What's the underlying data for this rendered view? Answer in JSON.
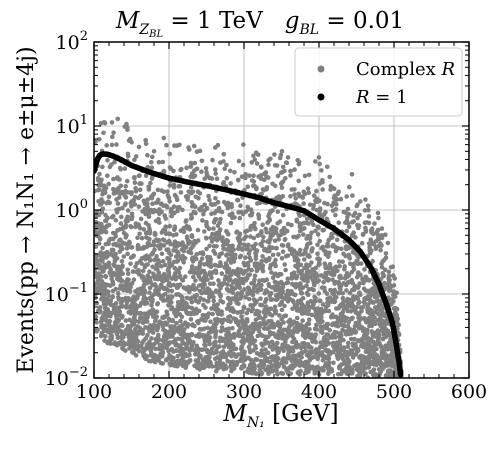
{
  "chart_data": {
    "type": "scatter",
    "title_parts": {
      "mz_sym": "M",
      "mz_sub": "Z",
      "mz_subsub": "BL",
      "mz_value": " = 1 TeV",
      "g_sym": "g",
      "g_sub": "BL",
      "g_value": " = 0.01"
    },
    "ylabel": "Events(pp → N₁N₁ → e±μ±4j)",
    "xlabel_parts": {
      "sym": "M",
      "sub": "N₁",
      "unit": " [GeV]"
    },
    "x_ticks": [
      "100",
      "200",
      "300",
      "400",
      "500",
      "600"
    ],
    "y_ticks": [
      {
        "base": "10",
        "exp": "−2",
        "value": 0.01
      },
      {
        "base": "10",
        "exp": "−1",
        "value": 0.1
      },
      {
        "base": "10",
        "exp": "0",
        "value": 1
      },
      {
        "base": "10",
        "exp": "1",
        "value": 10
      },
      {
        "base": "10",
        "exp": "2",
        "value": 100
      }
    ],
    "xlim": [
      100,
      600
    ],
    "ylim": [
      0.01,
      100
    ],
    "y_scale": "log",
    "grid": true,
    "legend_position": "top-right",
    "legend": [
      {
        "label_text": "Complex ",
        "label_italic": "R",
        "color": "#808080"
      },
      {
        "label_text": "",
        "label_italic": "R",
        "label_tail": " = 1",
        "color": "#000000"
      }
    ],
    "series": [
      {
        "key": "complex",
        "color": "#808080",
        "band": {
          "x": [
            100,
            110,
            120,
            140,
            160,
            180,
            200,
            230,
            260,
            290,
            320,
            350,
            380,
            410,
            440,
            460,
            480,
            495,
            505,
            510
          ],
          "upper": [
            12,
            14,
            15,
            13,
            11,
            9.5,
            8.5,
            8,
            7.8,
            7.6,
            6.5,
            5.8,
            5.2,
            4.5,
            3.0,
            2.0,
            1.2,
            0.4,
            0.1,
            0.012
          ],
          "lower": [
            0.03,
            0.03,
            0.025,
            0.02,
            0.018,
            0.015,
            0.014,
            0.013,
            0.012,
            0.012,
            0.011,
            0.011,
            0.011,
            0.011,
            0.011,
            0.01,
            0.01,
            0.01,
            0.01,
            0.01
          ]
        }
      },
      {
        "key": "r1",
        "color": "#000000",
        "x": [
          100,
          102,
          105,
          108,
          112,
          118,
          125,
          135,
          150,
          175,
          200,
          225,
          250,
          275,
          300,
          320,
          340,
          360,
          380,
          400,
          420,
          440,
          455,
          470,
          480,
          490,
          498,
          503,
          507,
          509
        ],
        "y": [
          2.9,
          3.4,
          4.1,
          4.5,
          4.65,
          4.6,
          4.4,
          4.0,
          3.4,
          2.8,
          2.4,
          2.15,
          1.95,
          1.75,
          1.55,
          1.4,
          1.22,
          1.1,
          0.98,
          0.76,
          0.6,
          0.44,
          0.32,
          0.2,
          0.13,
          0.075,
          0.045,
          0.025,
          0.015,
          0.0105
        ]
      }
    ]
  }
}
